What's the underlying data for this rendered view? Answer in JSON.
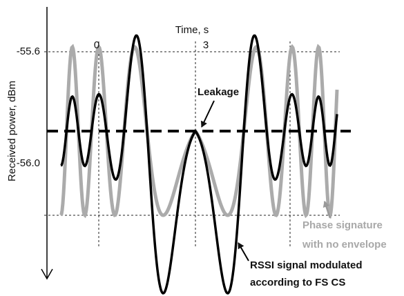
{
  "x_axis": {
    "title": "Time, s",
    "ticks": [
      "0",
      "3"
    ]
  },
  "y_axis": {
    "title": "Received power, dBm",
    "ticks": [
      "-55.6",
      "-56.0"
    ]
  },
  "annotations": {
    "leakage": "Leakage",
    "phase_signature": [
      "Phase signature",
      "with no envelope"
    ],
    "rssi_signal": [
      "RSSI signal modulated",
      "according to FS CS"
    ]
  }
}
